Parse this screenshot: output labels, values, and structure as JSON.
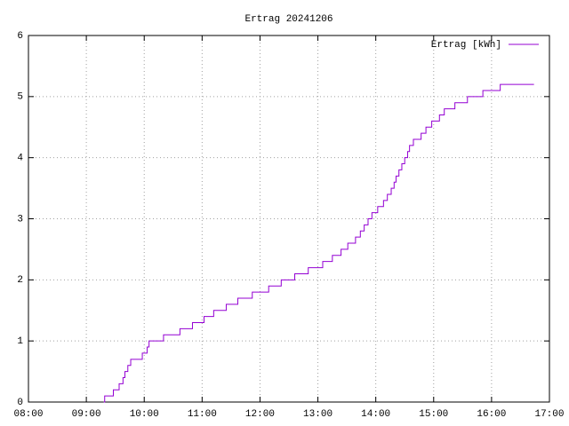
{
  "chart_data": {
    "type": "line",
    "title": "Ertrag 20241206",
    "x": [
      "09:18",
      "09:19",
      "09:28",
      "09:34",
      "09:38",
      "09:40",
      "09:43",
      "09:46",
      "09:58",
      "10:03",
      "10:05",
      "10:20",
      "10:37",
      "10:50",
      "11:02",
      "11:12",
      "11:25",
      "11:37",
      "11:52",
      "12:09",
      "12:22",
      "12:36",
      "12:50",
      "13:05",
      "13:15",
      "13:24",
      "13:31",
      "13:39",
      "13:44",
      "13:48",
      "13:52",
      "13:56",
      "14:02",
      "14:08",
      "14:12",
      "14:16",
      "14:19",
      "14:21",
      "14:24",
      "14:27",
      "14:30",
      "14:33",
      "14:35",
      "14:39",
      "14:47",
      "14:52",
      "14:58",
      "15:06",
      "15:11",
      "15:22",
      "15:35",
      "15:51",
      "16:09",
      "16:44"
    ],
    "series": [
      {
        "name": "Ertrag [kWh]",
        "color": "#9400d3",
        "values": [
          0,
          0.1,
          0.2,
          0.3,
          0.4,
          0.5,
          0.6,
          0.7,
          0.8,
          0.9,
          1.0,
          1.1,
          1.2,
          1.3,
          1.4,
          1.5,
          1.6,
          1.7,
          1.8,
          1.9,
          2.0,
          2.1,
          2.2,
          2.3,
          2.4,
          2.5,
          2.6,
          2.7,
          2.8,
          2.9,
          3.0,
          3.1,
          3.2,
          3.3,
          3.4,
          3.5,
          3.6,
          3.7,
          3.8,
          3.9,
          4.0,
          4.1,
          4.2,
          4.3,
          4.4,
          4.5,
          4.6,
          4.7,
          4.8,
          4.9,
          5.0,
          5.1,
          5.2,
          5.2
        ]
      }
    ],
    "xlim": [
      "08:00",
      "17:00"
    ],
    "xticks": [
      "08:00",
      "09:00",
      "10:00",
      "11:00",
      "12:00",
      "13:00",
      "14:00",
      "15:00",
      "16:00",
      "17:00"
    ],
    "ylim": [
      0,
      6
    ],
    "yticks": [
      0,
      1,
      2,
      3,
      4,
      5,
      6
    ],
    "grid": true,
    "legend": "top-right"
  }
}
